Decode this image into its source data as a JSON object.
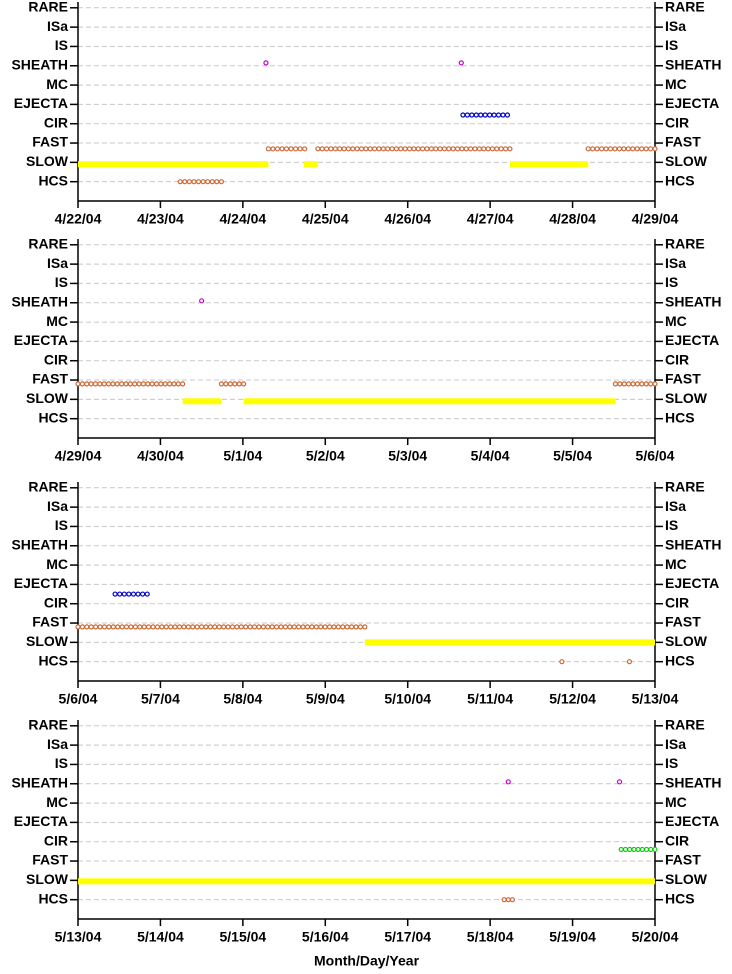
{
  "chart_data": [
    {
      "type": "timeline",
      "xlim": [
        0,
        7
      ],
      "ylim": [
        0,
        10.3
      ],
      "xticks": [
        {
          "value": 0,
          "label": "4/22/04"
        },
        {
          "value": 1,
          "label": "4/23/04"
        },
        {
          "value": 2,
          "label": "4/24/04"
        },
        {
          "value": 3,
          "label": "4/25/04"
        },
        {
          "value": 4,
          "label": "4/26/04"
        },
        {
          "value": 5,
          "label": "4/27/04"
        },
        {
          "value": 6,
          "label": "4/28/04"
        },
        {
          "value": 7,
          "label": "4/29/04"
        }
      ],
      "yticks": [
        {
          "value": 10,
          "label": "RARE"
        },
        {
          "value": 9,
          "label": "ISa"
        },
        {
          "value": 8,
          "label": "IS"
        },
        {
          "value": 7,
          "label": "SHEATH"
        },
        {
          "value": 6,
          "label": "MC"
        },
        {
          "value": 5,
          "label": "EJECTA"
        },
        {
          "value": 4,
          "label": "CIR"
        },
        {
          "value": 3,
          "label": "FAST"
        },
        {
          "value": 2,
          "label": "SLOW"
        },
        {
          "value": 1,
          "label": "HCS"
        }
      ],
      "grid": true,
      "series": [
        {
          "color": "#ffff00",
          "marker": "bar",
          "level": 1.9,
          "intervals": [
            [
              0,
              2.31
            ],
            [
              2.74,
              2.91
            ],
            [
              5.24,
              6.19
            ]
          ]
        },
        {
          "color": "#cc6633",
          "marker": "circle",
          "level": 1,
          "intervals": [
            [
              1.24,
              1.74
            ]
          ]
        },
        {
          "color": "#cc6633",
          "marker": "circle",
          "level": 2.7,
          "intervals": [
            [
              2.31,
              2.75
            ],
            [
              2.91,
              5.24
            ],
            [
              6.19,
              7
            ]
          ]
        },
        {
          "color": "#cc00cc",
          "marker": "circle",
          "level": 7.15,
          "intervals": [
            [
              2.28,
              2.28
            ],
            [
              4.65,
              4.65
            ]
          ]
        },
        {
          "color": "#0000cc",
          "marker": "circle",
          "level": 4.45,
          "intervals": [
            [
              4.67,
              5.21
            ]
          ]
        }
      ]
    },
    {
      "type": "timeline",
      "xlim": [
        0,
        7
      ],
      "ylim": [
        0,
        10.3
      ],
      "xticks": [
        {
          "value": 0,
          "label": "4/29/04"
        },
        {
          "value": 1,
          "label": "4/30/04"
        },
        {
          "value": 2,
          "label": "5/1/04"
        },
        {
          "value": 3,
          "label": "5/2/04"
        },
        {
          "value": 4,
          "label": "5/3/04"
        },
        {
          "value": 5,
          "label": "5/4/04"
        },
        {
          "value": 6,
          "label": "5/5/04"
        },
        {
          "value": 7,
          "label": "5/6/04"
        }
      ],
      "yticks": [
        {
          "value": 10,
          "label": "RARE"
        },
        {
          "value": 9,
          "label": "ISa"
        },
        {
          "value": 8,
          "label": "IS"
        },
        {
          "value": 7,
          "label": "SHEATH"
        },
        {
          "value": 6,
          "label": "MC"
        },
        {
          "value": 5,
          "label": "EJECTA"
        },
        {
          "value": 4,
          "label": "CIR"
        },
        {
          "value": 3,
          "label": "FAST"
        },
        {
          "value": 2,
          "label": "SLOW"
        },
        {
          "value": 1,
          "label": "HCS"
        }
      ],
      "grid": true,
      "series": [
        {
          "color": "#cc6633",
          "marker": "circle",
          "level": 2.8,
          "intervals": [
            [
              0,
              1.27
            ],
            [
              1.74,
              2.01
            ],
            [
              6.52,
              7
            ]
          ]
        },
        {
          "color": "#ffff00",
          "marker": "bar",
          "level": 1.9,
          "intervals": [
            [
              1.27,
              1.74
            ],
            [
              2.01,
              6.52
            ]
          ]
        },
        {
          "color": "#cc00cc",
          "marker": "circle",
          "level": 7.1,
          "intervals": [
            [
              1.5,
              1.5
            ]
          ]
        }
      ]
    },
    {
      "type": "timeline",
      "xlim": [
        0,
        7
      ],
      "ylim": [
        0,
        10.3
      ],
      "xticks": [
        {
          "value": 0,
          "label": "5/6/04"
        },
        {
          "value": 1,
          "label": "5/7/04"
        },
        {
          "value": 2,
          "label": "5/8/04"
        },
        {
          "value": 3,
          "label": "5/9/04"
        },
        {
          "value": 4,
          "label": "5/10/04"
        },
        {
          "value": 5,
          "label": "5/11/04"
        },
        {
          "value": 6,
          "label": "5/12/04"
        },
        {
          "value": 7,
          "label": "5/13/04"
        }
      ],
      "yticks": [
        {
          "value": 10,
          "label": "RARE"
        },
        {
          "value": 9,
          "label": "ISa"
        },
        {
          "value": 8,
          "label": "IS"
        },
        {
          "value": 7,
          "label": "SHEATH"
        },
        {
          "value": 6,
          "label": "MC"
        },
        {
          "value": 5,
          "label": "EJECTA"
        },
        {
          "value": 4,
          "label": "CIR"
        },
        {
          "value": 3,
          "label": "FAST"
        },
        {
          "value": 2,
          "label": "SLOW"
        },
        {
          "value": 1,
          "label": "HCS"
        }
      ],
      "grid": true,
      "series": [
        {
          "color": "#0000cc",
          "marker": "circle",
          "level": 4.5,
          "intervals": [
            [
              0.45,
              0.84
            ]
          ]
        },
        {
          "color": "#cc6633",
          "marker": "circle",
          "level": 2.8,
          "intervals": [
            [
              0,
              3.48
            ]
          ]
        },
        {
          "color": "#ffff00",
          "marker": "bar",
          "level": 2,
          "intervals": [
            [
              3.48,
              7
            ]
          ]
        },
        {
          "color": "#cc6633",
          "marker": "circle",
          "level": 1,
          "intervals": [
            [
              5.87,
              5.87
            ],
            [
              6.69,
              6.69
            ]
          ]
        }
      ]
    },
    {
      "type": "timeline",
      "xlim": [
        0,
        7
      ],
      "ylim": [
        0,
        10.3
      ],
      "xlabel": "Month/Day/Year",
      "xticks": [
        {
          "value": 0,
          "label": "5/13/04"
        },
        {
          "value": 1,
          "label": "5/14/04"
        },
        {
          "value": 2,
          "label": "5/15/04"
        },
        {
          "value": 3,
          "label": "5/16/04"
        },
        {
          "value": 4,
          "label": "5/17/04"
        },
        {
          "value": 5,
          "label": "5/18/04"
        },
        {
          "value": 6,
          "label": "5/19/04"
        },
        {
          "value": 7,
          "label": "5/20/04"
        }
      ],
      "yticks": [
        {
          "value": 10,
          "label": "RARE"
        },
        {
          "value": 9,
          "label": "ISa"
        },
        {
          "value": 8,
          "label": "IS"
        },
        {
          "value": 7,
          "label": "SHEATH"
        },
        {
          "value": 6,
          "label": "MC"
        },
        {
          "value": 5,
          "label": "EJECTA"
        },
        {
          "value": 4,
          "label": "CIR"
        },
        {
          "value": 3,
          "label": "FAST"
        },
        {
          "value": 2,
          "label": "SLOW"
        },
        {
          "value": 1,
          "label": "HCS"
        }
      ],
      "grid": true,
      "series": [
        {
          "color": "#ffff00",
          "marker": "bar",
          "level": 1.95,
          "intervals": [
            [
              0,
              7
            ]
          ]
        },
        {
          "color": "#cc00cc",
          "marker": "circle",
          "level": 7.1,
          "intervals": [
            [
              5.22,
              5.22
            ],
            [
              6.57,
              6.57
            ]
          ]
        },
        {
          "color": "#cc6633",
          "marker": "circle",
          "level": 1,
          "intervals": [
            [
              5.17,
              5.27
            ]
          ]
        },
        {
          "color": "#00cc00",
          "marker": "circle",
          "level": 3.6,
          "intervals": [
            [
              6.59,
              7
            ]
          ]
        }
      ]
    }
  ]
}
